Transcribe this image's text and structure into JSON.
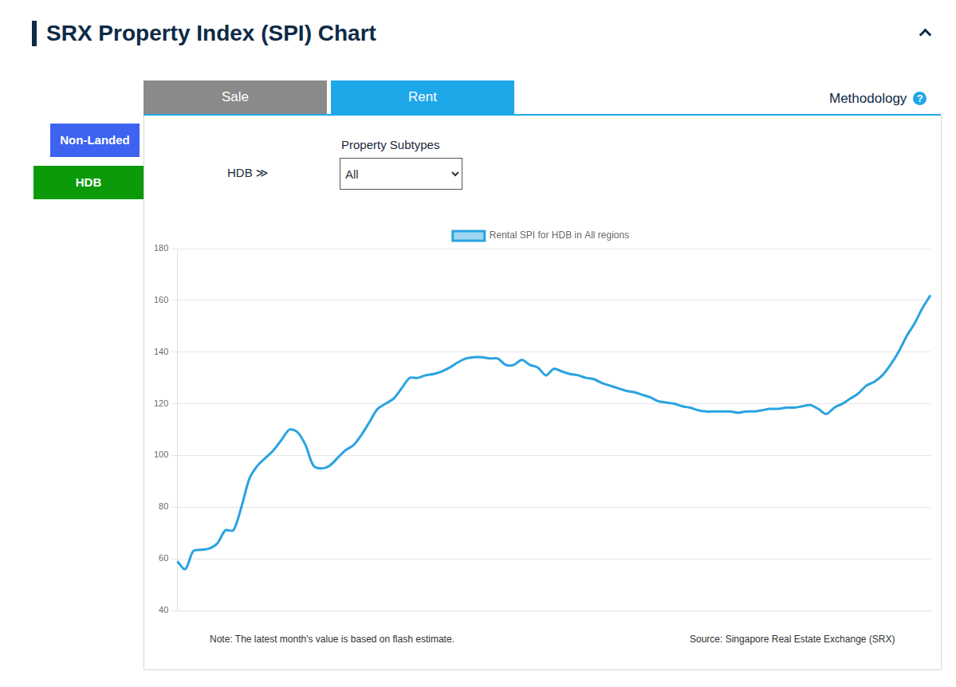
{
  "page": {
    "title": "SRX Property Index (SPI) Chart",
    "tabs": [
      "Sale",
      "Rent"
    ],
    "methodology": "Methodology",
    "help_icon": "?",
    "side_buttons": [
      "Non-Landed",
      "HDB"
    ],
    "breadcrumb": "HDB ≫",
    "subtype_label": "Property Subtypes",
    "subtype_selected": "All",
    "note": "Note: The latest month's value is based on flash estimate.",
    "source": "Source: Singapore Real Estate Exchange (SRX)"
  },
  "chart_data": {
    "type": "line",
    "categories": [
      null,
      null,
      null,
      null,
      null,
      null,
      null,
      null,
      null,
      null,
      null,
      null,
      null,
      null,
      null,
      null,
      null,
      null,
      null,
      null,
      null,
      null,
      null,
      null,
      null,
      null,
      null,
      null,
      null,
      null,
      null,
      null,
      null,
      null,
      null,
      null,
      null,
      null,
      null,
      null,
      null,
      null,
      null,
      null,
      null,
      null,
      null,
      null,
      null,
      null,
      null,
      null,
      null,
      null,
      null,
      null,
      null,
      null,
      null,
      null,
      null,
      null,
      null,
      null,
      null,
      null,
      null,
      null,
      null,
      null,
      null,
      null,
      null,
      null,
      null,
      null,
      null,
      null,
      null,
      null,
      null,
      null,
      null,
      null,
      null,
      null,
      null,
      null,
      null,
      null,
      null,
      null,
      null,
      null,
      null
    ],
    "series": [
      {
        "name": "Rental SPI for HDB in All regions",
        "color": "#29a3e0",
        "values": [
          59,
          56,
          63,
          63.5,
          64,
          66,
          71,
          71,
          80,
          91,
          96,
          99,
          102,
          106,
          110,
          109,
          104,
          96,
          95,
          96,
          99,
          102,
          104,
          108,
          113,
          118,
          120,
          122,
          126,
          130,
          130,
          131,
          131.5,
          132.5,
          134,
          136,
          137.5,
          138,
          138,
          137.5,
          137.5,
          135,
          135,
          137,
          135,
          134,
          131,
          133.5,
          132.5,
          131.5,
          131,
          130,
          129.5,
          128,
          127,
          126,
          125,
          124.5,
          123.5,
          122.5,
          121,
          120.5,
          120,
          119,
          118.5,
          117.5,
          117,
          117,
          117,
          117,
          116.5,
          117,
          117,
          117.5,
          118,
          118,
          118.5,
          118.5,
          119,
          119.5,
          118,
          116,
          118.5,
          120,
          122,
          124,
          127,
          128.5,
          131,
          135,
          140,
          146,
          151,
          157,
          162
        ]
      }
    ],
    "ylim": [
      40,
      180
    ],
    "yticks": [
      40,
      60,
      80,
      100,
      120,
      140,
      160,
      180
    ],
    "grid": true,
    "legend": "top",
    "tick_labels": "y"
  }
}
